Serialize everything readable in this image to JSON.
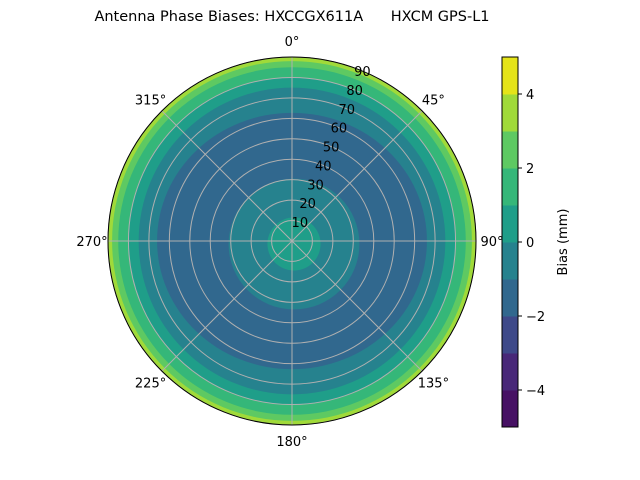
{
  "chart_data": {
    "type": "polar-contour",
    "title": "Antenna Phase Biases: HXCCGX611A      HXCM GPS-L1",
    "angular_ticks": [
      "0°",
      "45°",
      "90°",
      "135°",
      "180°",
      "225°",
      "270°",
      "315°"
    ],
    "radial_ticks": [
      "10",
      "20",
      "30",
      "40",
      "50",
      "60",
      "70",
      "80",
      "90"
    ],
    "radial_range": [
      0,
      90
    ],
    "grid": true,
    "colorbar": {
      "label": "Bias (mm)",
      "range": [
        -5,
        5
      ],
      "levels": [
        -5,
        -4,
        -3,
        -2,
        -1,
        0,
        1,
        2,
        3,
        4,
        5
      ],
      "ticks": [
        "4",
        "2",
        "0",
        "−2",
        "−4"
      ],
      "colors": [
        "#471164",
        "#482878",
        "#3e4989",
        "#31688e",
        "#26828e",
        "#1f9e89",
        "#35b779",
        "#5ec962",
        "#a0da39",
        "#e5e419"
      ],
      "placement": "right"
    },
    "zenith_bias_bands": [
      {
        "zenith_max": 90,
        "bias": 3.5
      },
      {
        "zenith_max": 88,
        "bias": 2.5
      },
      {
        "zenith_max": 85,
        "bias": 1.5
      },
      {
        "zenith_max": 80,
        "bias": 0.5
      },
      {
        "zenith_max": 75,
        "bias": -0.5
      },
      {
        "zenith_max": 66,
        "bias": -1.5
      },
      {
        "zenith_max": 32,
        "bias": -0.5
      },
      {
        "zenith_max": 13,
        "bias": 0.5
      }
    ]
  }
}
